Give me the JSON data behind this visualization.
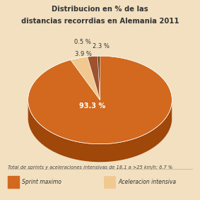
{
  "title_line1": "Distribucion en % de las",
  "title_line2": "distancias recorrdias en Alemania 2011",
  "slices": [
    93.3,
    3.9,
    2.3,
    0.5
  ],
  "colors_top": [
    "#D2691E",
    "#F0C890",
    "#A0522D",
    "#5C3010"
  ],
  "colors_side": [
    "#A0470A",
    "#C8A060",
    "#7A3A15",
    "#3A1A05"
  ],
  "background_color": "#F2E0C0",
  "footer_text": "Total de sprints y aceleraciones intensivas de 18.1 a >25 km/h: 6.7 %",
  "legend1_label": "Sprint maximo",
  "legend2_label": "Aceleracion intensiva",
  "legend1_color": "#D2691E",
  "legend2_color": "#F0C890"
}
